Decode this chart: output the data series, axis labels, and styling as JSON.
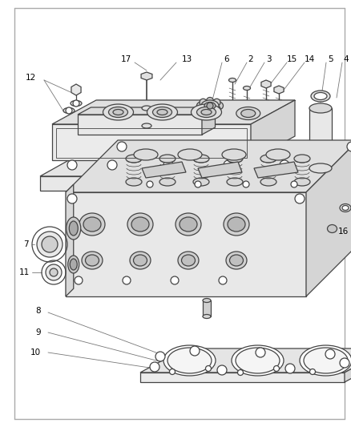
{
  "bg_color": "#ffffff",
  "line_color": "#444444",
  "label_color": "#000000",
  "fig_width": 4.39,
  "fig_height": 5.33,
  "dpi": 100
}
